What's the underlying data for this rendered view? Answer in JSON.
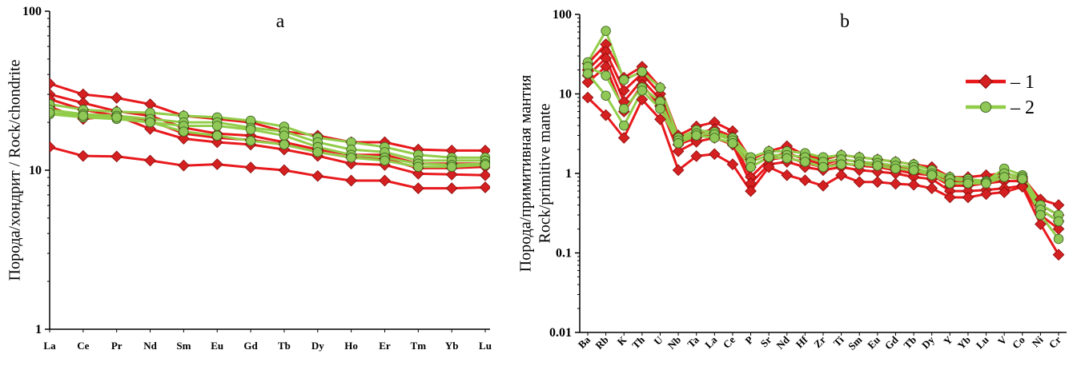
{
  "colors": {
    "group1_line": "#e8191d",
    "group1_marker": "#d42020",
    "group1_marker_edge": "#8a0a0a",
    "group2_line": "#92cd4a",
    "group2_marker": "#8fc857",
    "group2_marker_edge": "#3e6620",
    "axis": "#000000"
  },
  "chart_data": [
    {
      "type": "line",
      "panel_label": "a",
      "scale": "log",
      "ylabel": "Порода/хондрит / Rock/chondrite",
      "ylim": [
        1,
        100
      ],
      "y_ticks": [
        "1",
        "10",
        "100"
      ],
      "categories": [
        "La",
        "Ce",
        "Pr",
        "Nd",
        "Sm",
        "Eu",
        "Gd",
        "Tb",
        "Dy",
        "Ho",
        "Er",
        "Tm",
        "Yb",
        "Lu"
      ],
      "series": [
        {
          "name": "1",
          "group": 1,
          "values": [
            35,
            30,
            28.5,
            26,
            22,
            21,
            20,
            17.5,
            16.5,
            15,
            15,
            13.5,
            13.3,
            13.3
          ]
        },
        {
          "name": "1",
          "group": 1,
          "values": [
            30,
            26.5,
            23.5,
            22,
            18.5,
            17,
            16.5,
            15,
            13.5,
            12.5,
            12.5,
            11,
            11,
            11
          ]
        },
        {
          "name": "1",
          "group": 1,
          "values": [
            28,
            24,
            22,
            20.5,
            17,
            16,
            15.5,
            14.5,
            13,
            12,
            11.8,
            10.3,
            10.3,
            10.5
          ]
        },
        {
          "name": "1",
          "group": 1,
          "values": [
            25,
            21,
            22,
            18.2,
            15.8,
            15,
            14.5,
            13.5,
            12.3,
            11,
            10.8,
            9.5,
            9.4,
            9.3
          ]
        },
        {
          "name": "1",
          "group": 1,
          "values": [
            14,
            12.3,
            12.2,
            11.5,
            10.7,
            10.9,
            10.4,
            10,
            9.2,
            8.6,
            8.6,
            7.7,
            7.7,
            7.8
          ]
        },
        {
          "name": "2",
          "group": 2,
          "values": [
            26,
            24,
            23.3,
            23,
            22,
            21.5,
            20.5,
            18.8,
            16,
            15,
            14,
            12.5,
            12,
            12
          ]
        },
        {
          "name": "2",
          "group": 2,
          "values": [
            24,
            22.5,
            22,
            21,
            20,
            20,
            18.5,
            17.5,
            15,
            13.5,
            13,
            11.5,
            11.5,
            11.5
          ]
        },
        {
          "name": "2",
          "group": 2,
          "values": [
            22.5,
            21.5,
            21,
            20,
            19,
            19,
            18,
            16.5,
            14,
            12.5,
            12,
            11,
            10.8,
            11
          ]
        },
        {
          "name": "2",
          "group": 2,
          "values": [
            23,
            22,
            21.5,
            20,
            17.5,
            16.5,
            15.3,
            14.5,
            13,
            12,
            11.5,
            10.5,
            10.5,
            10.8
          ]
        }
      ]
    },
    {
      "type": "line",
      "panel_label": "b",
      "scale": "log",
      "ylabel": "Порода/примитивная мантия",
      "ylabel2": "Rock/primitive mante",
      "ylim": [
        0.01,
        100
      ],
      "y_ticks": [
        "0.01",
        "0.1",
        "1",
        "10",
        "100"
      ],
      "categories": [
        "Ba",
        "Rb",
        "K",
        "Th",
        "U",
        "Nb",
        "Ta",
        "La",
        "Ce",
        "P",
        "Sr",
        "Nd",
        "Hf",
        "Zr",
        "Ti",
        "Sm",
        "Eu",
        "Gd",
        "Tb",
        "Dy",
        "Y",
        "Yb",
        "Lu",
        "V",
        "Co",
        "Ni",
        "Cr"
      ],
      "series": [
        {
          "name": "1",
          "group": 1,
          "values": [
            24,
            42,
            16,
            22,
            12,
            3,
            3.9,
            4.4,
            3.4,
            1.5,
            1.9,
            2.2,
            1.7,
            1.5,
            1.7,
            1.6,
            1.5,
            1.4,
            1.3,
            1.2,
            0.9,
            0.9,
            0.95,
            1.0,
            0.9,
            0.47,
            0.4
          ]
        },
        {
          "name": "1",
          "group": 1,
          "values": [
            20,
            34,
            11,
            18,
            10,
            2.6,
            3.2,
            3.6,
            2.9,
            1.2,
            1.6,
            1.8,
            1.5,
            1.3,
            1.5,
            1.4,
            1.3,
            1.2,
            1.1,
            1.0,
            0.8,
            0.8,
            0.8,
            0.9,
            0.85,
            0.4,
            0.3
          ]
        },
        {
          "name": "1",
          "group": 1,
          "values": [
            17,
            28,
            8,
            15,
            8.5,
            2.3,
            2.8,
            3.2,
            2.6,
            0.9,
            1.5,
            1.6,
            1.35,
            1.2,
            1.35,
            1.25,
            1.2,
            1.1,
            1.0,
            0.95,
            0.7,
            0.7,
            0.75,
            0.8,
            0.8,
            0.35,
            0.25
          ]
        },
        {
          "name": "1",
          "group": 1,
          "values": [
            14,
            22,
            6,
            13,
            7,
            1.9,
            2.5,
            2.8,
            2.3,
            0.75,
            1.3,
            1.4,
            1.2,
            1.1,
            1.2,
            1.1,
            1.05,
            1.0,
            0.9,
            0.85,
            0.6,
            0.6,
            0.62,
            0.65,
            0.7,
            0.3,
            0.2
          ]
        },
        {
          "name": "1",
          "group": 1,
          "values": [
            9,
            5.4,
            2.8,
            8.5,
            4.8,
            1.1,
            1.65,
            1.75,
            1.3,
            0.6,
            1.2,
            0.95,
            0.82,
            0.7,
            0.95,
            0.78,
            0.78,
            0.74,
            0.72,
            0.65,
            0.5,
            0.5,
            0.55,
            0.58,
            0.68,
            0.23,
            0.095
          ]
        },
        {
          "name": "2",
          "group": 2,
          "values": [
            25,
            62,
            15,
            19,
            12,
            2.8,
            3.5,
            3.3,
            2.8,
            1.6,
            1.9,
            1.9,
            1.8,
            1.6,
            1.7,
            1.6,
            1.5,
            1.4,
            1.3,
            1.1,
            0.9,
            0.85,
            0.8,
            1.15,
            0.95,
            0.4,
            0.3
          ]
        },
        {
          "name": "2",
          "group": 2,
          "values": [
            22,
            17,
            6.5,
            12,
            8,
            2.6,
            3.2,
            3.1,
            2.6,
            1.4,
            1.7,
            1.7,
            1.6,
            1.4,
            1.5,
            1.4,
            1.35,
            1.25,
            1.2,
            1.0,
            0.85,
            0.8,
            0.78,
            1.0,
            0.9,
            0.35,
            0.25
          ]
        },
        {
          "name": "2",
          "group": 2,
          "values": [
            18,
            9.5,
            4,
            11,
            6.5,
            2.4,
            3.0,
            2.8,
            2.4,
            1.2,
            1.6,
            1.55,
            1.4,
            1.2,
            1.3,
            1.3,
            1.25,
            1.15,
            1.1,
            0.95,
            0.75,
            0.75,
            0.75,
            0.9,
            0.85,
            0.3,
            0.15
          ]
        }
      ]
    }
  ],
  "legend": {
    "items": [
      {
        "label": "– 1",
        "group": 1
      },
      {
        "label": "– 2",
        "group": 2
      }
    ]
  }
}
